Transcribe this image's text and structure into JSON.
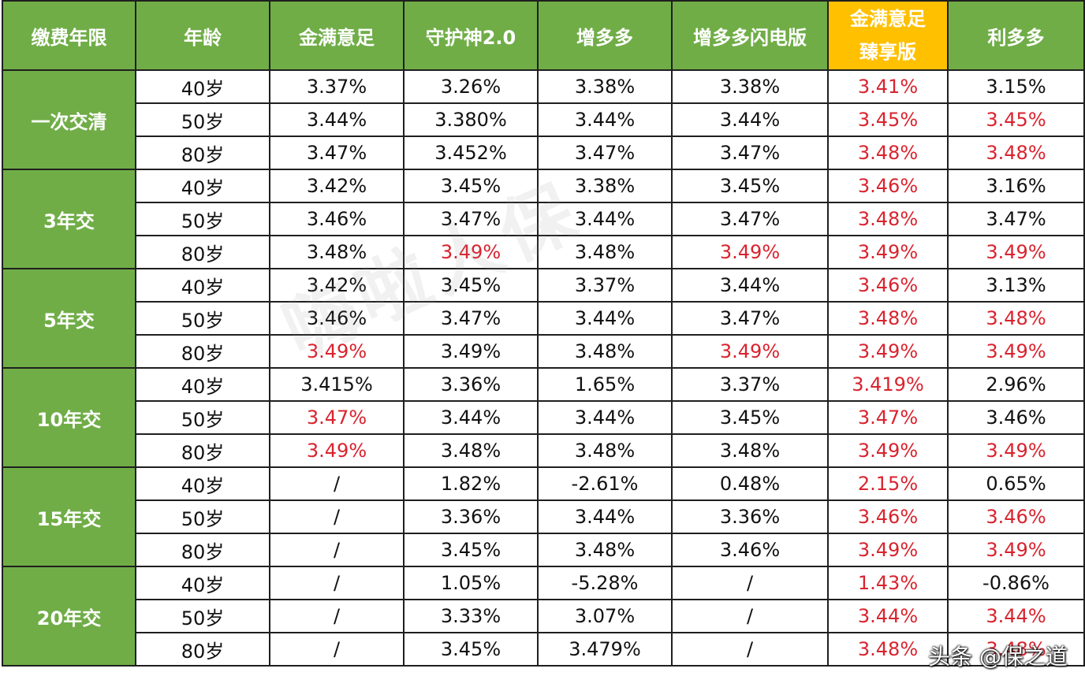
{
  "table": {
    "columns": [
      "缴费年限",
      "年龄",
      "金满意足",
      "守护神2.0",
      "增多多",
      "增多多闪电版",
      "金满意足\n臻享版",
      "利多多"
    ],
    "highlight_column_index": 6,
    "colors": {
      "header_bg": "#70ad47",
      "highlight_header_bg": "#ffc000",
      "period_bg": "#70ad47",
      "highlight_text": "#d9232e",
      "normal_text": "#111111"
    },
    "groups": [
      {
        "period": "一次交清",
        "rows": [
          {
            "age": "40岁",
            "values": [
              "3.37%",
              "3.26%",
              "3.38%",
              "3.38%",
              "3.41%",
              "3.15%"
            ],
            "red": [
              false,
              false,
              false,
              false,
              true,
              false
            ]
          },
          {
            "age": "50岁",
            "values": [
              "3.44%",
              "3.380%",
              "3.44%",
              "3.44%",
              "3.45%",
              "3.45%"
            ],
            "red": [
              false,
              false,
              false,
              false,
              true,
              true
            ]
          },
          {
            "age": "80岁",
            "values": [
              "3.47%",
              "3.452%",
              "3.47%",
              "3.47%",
              "3.48%",
              "3.48%"
            ],
            "red": [
              false,
              false,
              false,
              false,
              true,
              true
            ]
          }
        ]
      },
      {
        "period": "3年交",
        "rows": [
          {
            "age": "40岁",
            "values": [
              "3.42%",
              "3.45%",
              "3.38%",
              "3.45%",
              "3.46%",
              "3.16%"
            ],
            "red": [
              false,
              false,
              false,
              false,
              true,
              false
            ]
          },
          {
            "age": "50岁",
            "values": [
              "3.46%",
              "3.47%",
              "3.44%",
              "3.47%",
              "3.48%",
              "3.47%"
            ],
            "red": [
              false,
              false,
              false,
              false,
              true,
              false
            ]
          },
          {
            "age": "80岁",
            "values": [
              "3.48%",
              "3.49%",
              "3.48%",
              "3.49%",
              "3.49%",
              "3.49%"
            ],
            "red": [
              false,
              true,
              false,
              true,
              true,
              true
            ]
          }
        ]
      },
      {
        "period": "5年交",
        "rows": [
          {
            "age": "40岁",
            "values": [
              "3.42%",
              "3.45%",
              "3.37%",
              "3.44%",
              "3.46%",
              "3.13%"
            ],
            "red": [
              false,
              false,
              false,
              false,
              true,
              false
            ]
          },
          {
            "age": "50岁",
            "values": [
              "3.46%",
              "3.47%",
              "3.44%",
              "3.47%",
              "3.48%",
              "3.48%"
            ],
            "red": [
              false,
              false,
              false,
              false,
              true,
              true
            ]
          },
          {
            "age": "80岁",
            "values": [
              "3.49%",
              "3.49%",
              "3.48%",
              "3.49%",
              "3.49%",
              "3.49%"
            ],
            "red": [
              true,
              false,
              false,
              true,
              true,
              true
            ]
          }
        ]
      },
      {
        "period": "10年交",
        "rows": [
          {
            "age": "40岁",
            "values": [
              "3.415%",
              "3.36%",
              "1.65%",
              "3.37%",
              "3.419%",
              "2.96%"
            ],
            "red": [
              false,
              false,
              false,
              false,
              true,
              false
            ]
          },
          {
            "age": "50岁",
            "values": [
              "3.47%",
              "3.44%",
              "3.44%",
              "3.45%",
              "3.47%",
              "3.46%"
            ],
            "red": [
              true,
              false,
              false,
              false,
              true,
              false
            ]
          },
          {
            "age": "80岁",
            "values": [
              "3.49%",
              "3.48%",
              "3.48%",
              "3.48%",
              "3.49%",
              "3.49%"
            ],
            "red": [
              true,
              false,
              false,
              false,
              true,
              true
            ]
          }
        ]
      },
      {
        "period": "15年交",
        "rows": [
          {
            "age": "40岁",
            "values": [
              "/",
              "1.82%",
              "-2.61%",
              "0.48%",
              "2.15%",
              "0.65%"
            ],
            "red": [
              false,
              false,
              false,
              false,
              true,
              false
            ]
          },
          {
            "age": "50岁",
            "values": [
              "/",
              "3.36%",
              "3.44%",
              "3.36%",
              "3.46%",
              "3.46%"
            ],
            "red": [
              false,
              false,
              false,
              false,
              true,
              true
            ]
          },
          {
            "age": "80岁",
            "values": [
              "/",
              "3.45%",
              "3.48%",
              "3.46%",
              "3.49%",
              "3.49%"
            ],
            "red": [
              false,
              false,
              false,
              false,
              true,
              true
            ]
          }
        ]
      },
      {
        "period": "20年交",
        "rows": [
          {
            "age": "40岁",
            "values": [
              "/",
              "1.05%",
              "-5.28%",
              "/",
              "1.43%",
              "-0.86%"
            ],
            "red": [
              false,
              false,
              false,
              false,
              true,
              false
            ]
          },
          {
            "age": "50岁",
            "values": [
              "/",
              "3.33%",
              "3.07%",
              "/",
              "3.44%",
              "3.44%"
            ],
            "red": [
              false,
              false,
              false,
              false,
              true,
              true
            ]
          },
          {
            "age": "80岁",
            "values": [
              "/",
              "3.45%",
              "3.479%",
              "/",
              "3.48%",
              "3.48%"
            ],
            "red": [
              false,
              false,
              false,
              false,
              true,
              true
            ]
          }
        ]
      }
    ]
  },
  "watermark": "嗨啦人保",
  "source_mark": "头条 @保之道"
}
